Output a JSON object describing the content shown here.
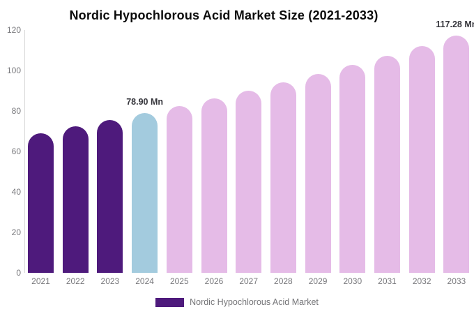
{
  "title": "Nordic Hypochlorous Acid Market Size (2021-2033)",
  "chart_data": {
    "type": "bar",
    "title": "Nordic Hypochlorous Acid Market Size (2021-2033)",
    "xlabel": "",
    "ylabel": "",
    "categories": [
      "2021",
      "2022",
      "2023",
      "2024",
      "2025",
      "2026",
      "2027",
      "2028",
      "2029",
      "2030",
      "2031",
      "2032",
      "2033"
    ],
    "series": [
      {
        "name": "Nordic Hypochlorous Acid Market",
        "values": [
          69.14,
          72.25,
          75.5,
          78.9,
          82.45,
          86.16,
          90.04,
          94.09,
          98.32,
          102.75,
          107.37,
          112.2,
          117.28
        ]
      }
    ],
    "unit": "Mn",
    "bar_colors": [
      "#4e1a7c",
      "#4e1a7c",
      "#4e1a7c",
      "#a3cbde",
      "#e5bbe7",
      "#e5bbe7",
      "#e5bbe7",
      "#e5bbe7",
      "#e5bbe7",
      "#e5bbe7",
      "#e5bbe7",
      "#e5bbe7",
      "#e5bbe7"
    ],
    "point_labels": [
      {
        "index": 3,
        "text": "78.90 Mn"
      },
      {
        "index": 12,
        "text": "117.28 Mn"
      }
    ],
    "yticks": [
      0,
      20,
      40,
      60,
      80,
      100,
      120
    ],
    "ylim": [
      0,
      120
    ],
    "grid": false,
    "legend_position": "bottom"
  },
  "legend": {
    "label": "Nordic Hypochlorous Acid Market",
    "swatch_color": "#4e1a7c"
  },
  "colors": {
    "background": "#ffffff",
    "past_bar": "#4e1a7c",
    "current_bar": "#a3cbde",
    "forecast_bar": "#e5bbe7",
    "axis_line": "#d8d8d8",
    "tick_text": "#78787c",
    "value_label_text": "#36363c",
    "title_text": "#0b0b0b"
  }
}
